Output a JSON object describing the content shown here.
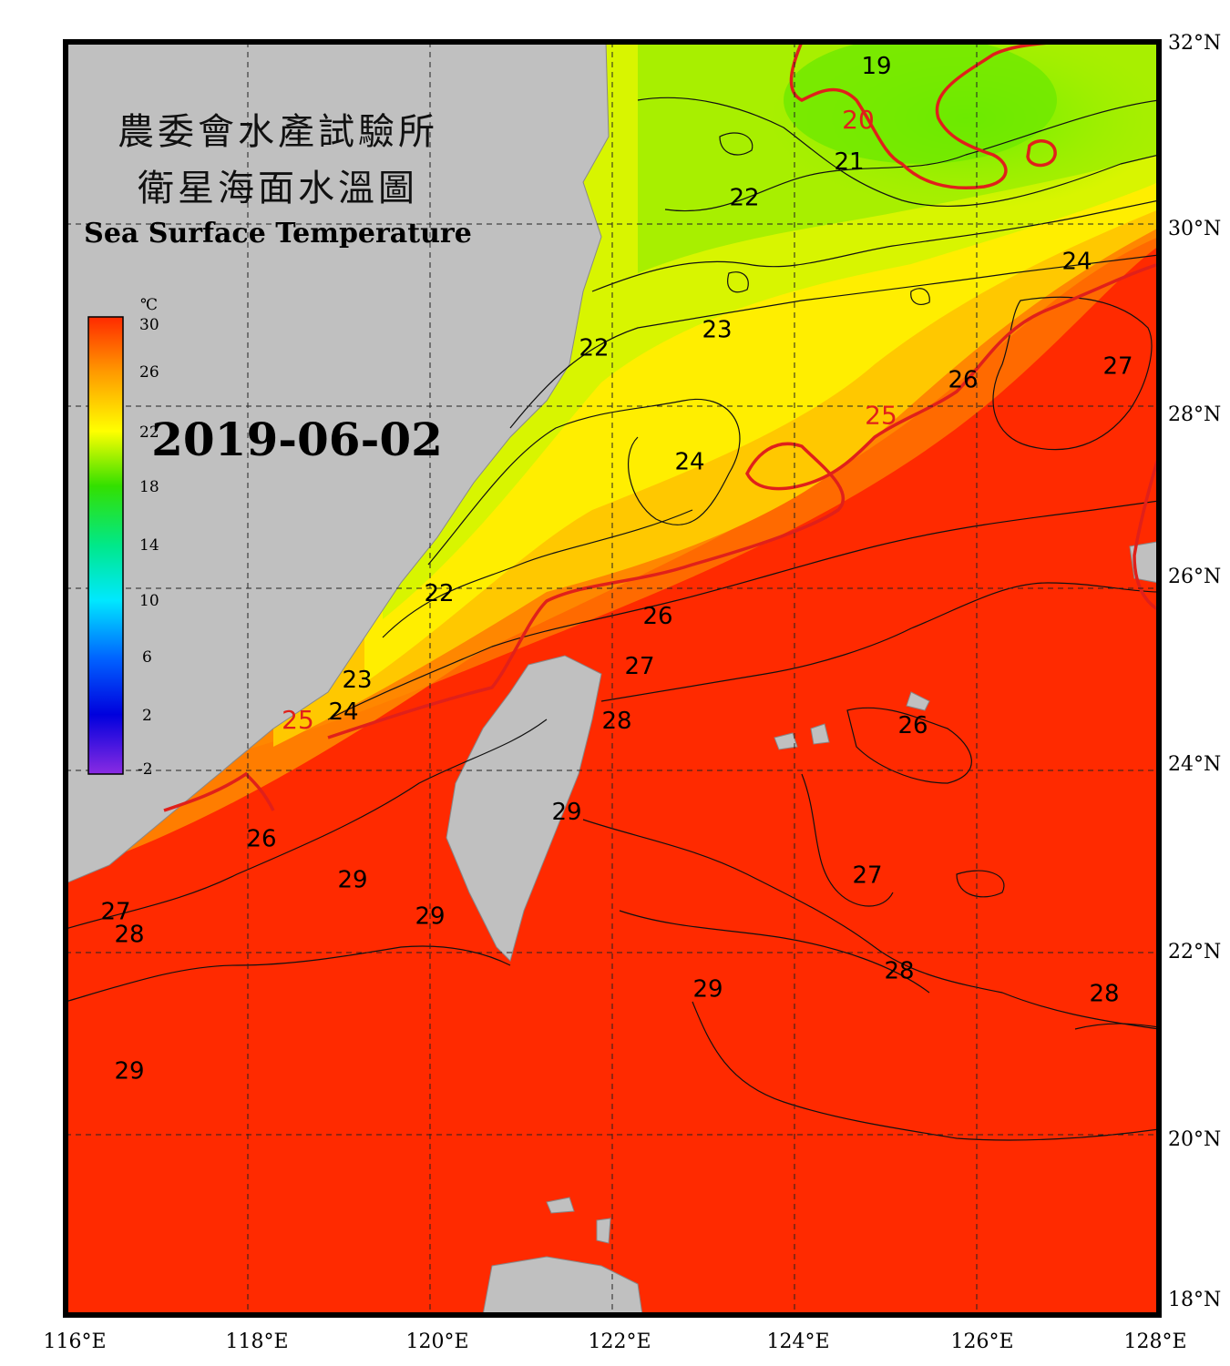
{
  "title": {
    "line1": "農委會水產試驗所",
    "line2": "衛星海面水溫圖",
    "english": "Sea Surface Temperature"
  },
  "date": "2019-06-02",
  "colorbar": {
    "unit": "℃",
    "ticks": [
      "30",
      "26",
      "22",
      "18",
      "14",
      "10",
      "6",
      "2",
      "-2"
    ],
    "range": [
      -2,
      30
    ]
  },
  "axes": {
    "longitude_labels": [
      "116°E",
      "118°E",
      "120°E",
      "122°E",
      "124°E",
      "126°E",
      "128°E"
    ],
    "latitude_labels": [
      "32°N",
      "30°N",
      "28°N",
      "26°N",
      "24°N",
      "22°N",
      "20°N",
      "18°N"
    ],
    "lon_range": [
      116,
      128
    ],
    "lat_range": [
      18,
      32
    ],
    "gridlines": "dashed"
  },
  "isotherm_labels": [
    {
      "text": "19",
      "lon": 124.9,
      "lat": 31.65
    },
    {
      "text": "20",
      "lon": 124.7,
      "lat": 31.05,
      "highlight": true
    },
    {
      "text": "21",
      "lon": 124.6,
      "lat": 30.6
    },
    {
      "text": "22",
      "lon": 123.45,
      "lat": 30.2
    },
    {
      "text": "24",
      "lon": 127.1,
      "lat": 29.5
    },
    {
      "text": "23",
      "lon": 123.15,
      "lat": 28.75
    },
    {
      "text": "22",
      "lon": 121.8,
      "lat": 28.55
    },
    {
      "text": "26",
      "lon": 125.85,
      "lat": 28.2
    },
    {
      "text": "27",
      "lon": 127.55,
      "lat": 28.35
    },
    {
      "text": "25",
      "lon": 124.95,
      "lat": 27.8,
      "highlight": true
    },
    {
      "text": "24",
      "lon": 122.85,
      "lat": 27.3
    },
    {
      "text": "22",
      "lon": 120.1,
      "lat": 25.85
    },
    {
      "text": "26",
      "lon": 122.5,
      "lat": 25.6
    },
    {
      "text": "27",
      "lon": 122.3,
      "lat": 25.05
    },
    {
      "text": "23",
      "lon": 119.2,
      "lat": 24.9
    },
    {
      "text": "24",
      "lon": 119.05,
      "lat": 24.55
    },
    {
      "text": "25",
      "lon": 118.55,
      "lat": 24.45,
      "highlight": true
    },
    {
      "text": "28",
      "lon": 122.05,
      "lat": 24.45
    },
    {
      "text": "26",
      "lon": 125.3,
      "lat": 24.4
    },
    {
      "text": "29",
      "lon": 121.5,
      "lat": 23.45
    },
    {
      "text": "26",
      "lon": 118.15,
      "lat": 23.15
    },
    {
      "text": "27",
      "lon": 124.8,
      "lat": 22.75
    },
    {
      "text": "29",
      "lon": 119.15,
      "lat": 22.7
    },
    {
      "text": "27",
      "lon": 116.55,
      "lat": 22.35
    },
    {
      "text": "29",
      "lon": 120.0,
      "lat": 22.3
    },
    {
      "text": "28",
      "lon": 116.7,
      "lat": 22.1
    },
    {
      "text": "28",
      "lon": 125.15,
      "lat": 21.7
    },
    {
      "text": "29",
      "lon": 123.05,
      "lat": 21.5
    },
    {
      "text": "28",
      "lon": 127.4,
      "lat": 21.45
    },
    {
      "text": "29",
      "lon": 116.7,
      "lat": 20.6
    }
  ]
}
